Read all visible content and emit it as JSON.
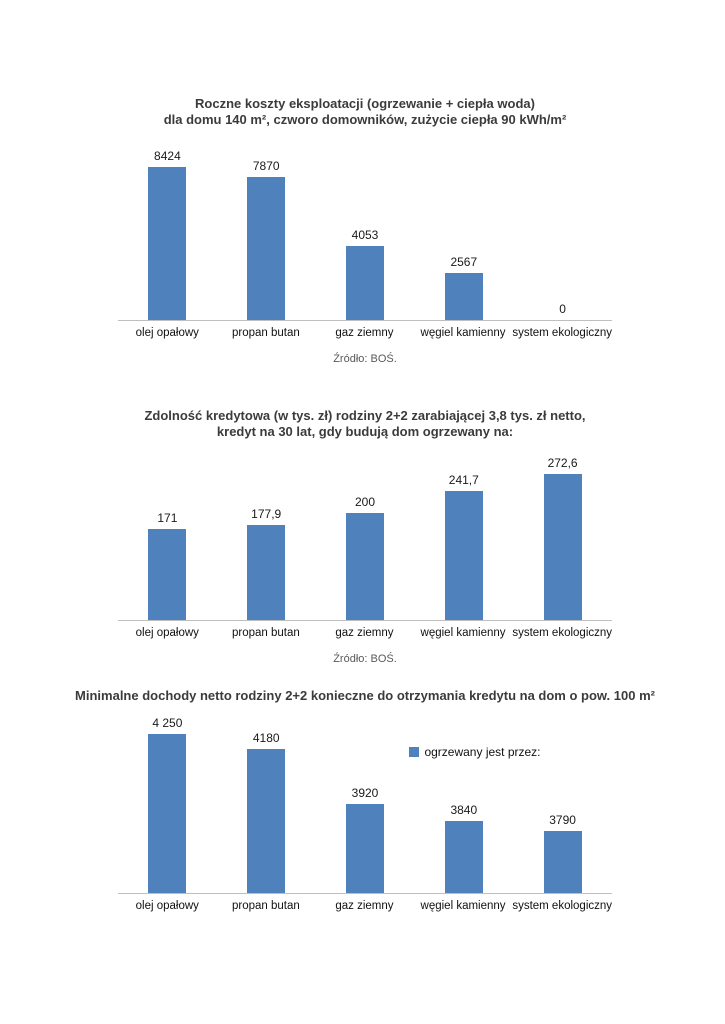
{
  "colors": {
    "bar": "#4f81bd",
    "axis_line": "#bfbfbf",
    "title_text": "#3b3b3b",
    "source_text": "#595959"
  },
  "chart_data": [
    {
      "type": "bar",
      "title_lines": [
        "Roczne koszty eksploatacji (ogrzewanie + ciepła woda)",
        "dla domu 140 m², czworo domowników, zużycie ciepła 90 kWh/m²"
      ],
      "categories": [
        "olej opałowy",
        "propan butan",
        "gaz ziemny",
        "węgiel kamienny",
        "system ekologiczny"
      ],
      "values": [
        8424,
        7870,
        4053,
        2567,
        0
      ],
      "value_labels": [
        "8424",
        "7870",
        "4053",
        "2567",
        "0"
      ],
      "ylim": [
        0,
        8800
      ],
      "grid": false,
      "source": "Źródło: BOŚ."
    },
    {
      "type": "bar",
      "title_lines": [
        "Zdolność kredytowa (w tys. zł) rodziny 2+2 zarabiającej 3,8 tys. zł netto,",
        "kredyt na 30 lat, gdy budują dom ogrzewany na:"
      ],
      "categories": [
        "olej opałowy",
        "propan butan",
        "gaz ziemny",
        "węgiel kamienny",
        "system ekologiczny"
      ],
      "values": [
        171,
        177.9,
        200,
        241.7,
        272.6
      ],
      "value_labels": [
        "171",
        "177,9",
        "200",
        "241,7",
        "272,6"
      ],
      "ylim": [
        0,
        290
      ],
      "grid": false,
      "source": "Źródło: BOŚ."
    },
    {
      "type": "bar",
      "title_lines": [
        "Minimalne dochody netto rodziny 2+2 konieczne do otrzymania kredytu na dom o pow. 100 m²"
      ],
      "categories": [
        "olej opałowy",
        "propan butan",
        "gaz ziemny",
        "węgiel kamienny",
        "system ekologiczny"
      ],
      "values": [
        4250,
        4180,
        3920,
        3840,
        3790
      ],
      "value_labels": [
        "4 250",
        "4180",
        "3920",
        "3840",
        "3790"
      ],
      "ylim": [
        3500,
        4300
      ],
      "grid": false,
      "legend": {
        "label": "ogrzewany jest przez:",
        "position": "inside-right"
      }
    }
  ]
}
